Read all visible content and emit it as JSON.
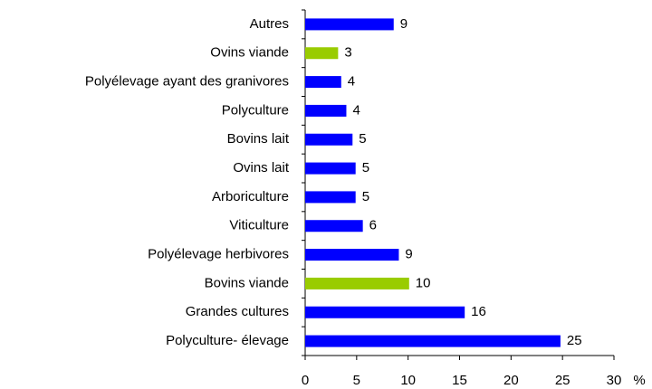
{
  "chart_data": {
    "type": "barh",
    "categories": [
      "Autres",
      "Ovins viande",
      "Polyélevage ayant des granivores",
      "Polyculture",
      "Bovins lait",
      "Ovins lait",
      "Arboriculture",
      "Viticulture",
      "Polyélevage herbivores",
      "Bovins viande",
      "Grandes cultures",
      "Polyculture- élevage"
    ],
    "values": [
      8.6,
      3.2,
      3.5,
      4.0,
      4.6,
      4.9,
      4.9,
      5.6,
      9.1,
      10.1,
      15.5,
      24.8
    ],
    "value_labels": [
      "9",
      "3",
      "4",
      "4",
      "5",
      "5",
      "5",
      "6",
      "9",
      "10",
      "16",
      "25"
    ],
    "colors": [
      "#0000ff",
      "#99cc00",
      "#0000ff",
      "#0000ff",
      "#0000ff",
      "#0000ff",
      "#0000ff",
      "#0000ff",
      "#0000ff",
      "#99cc00",
      "#0000ff",
      "#0000ff"
    ],
    "xlabel": "%",
    "xlim": [
      0,
      30
    ],
    "xticks": [
      0,
      5,
      10,
      15,
      20,
      25,
      30
    ],
    "grid": false
  }
}
